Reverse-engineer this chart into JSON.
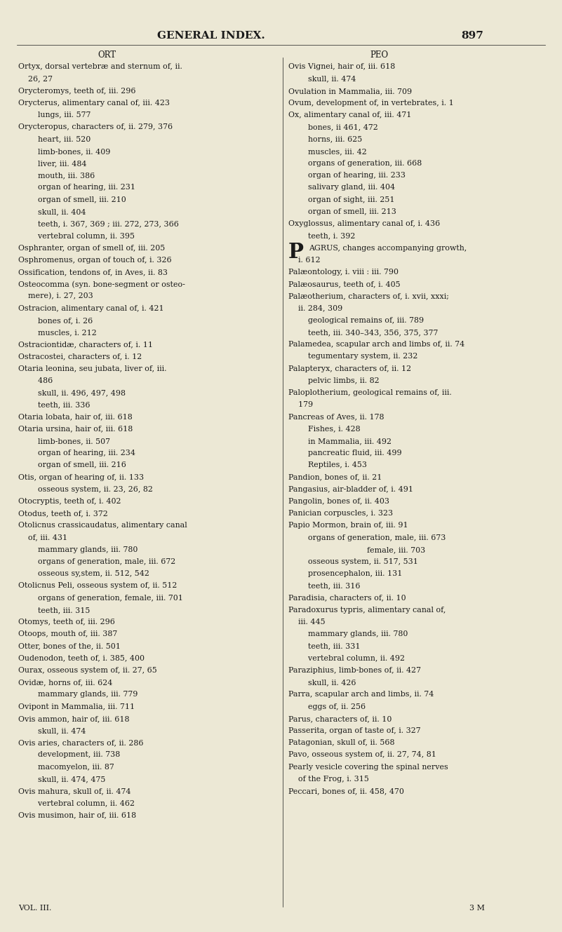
{
  "bg_color": "#ece8d5",
  "text_color": "#1a1a1a",
  "title": "GENERAL INDEX.",
  "page_num": "897",
  "left_header": "ORT",
  "right_header": "PEO",
  "left_lines": [
    [
      "Ortyx, dorsal vertebræ and sternum of, ii.",
      false
    ],
    [
      "    26, 27",
      false
    ],
    [
      "Orycteromys, teeth of, iii. 296",
      false
    ],
    [
      "Orycterus, alimentary canal of, iii. 423",
      false
    ],
    [
      "        lungs, iii. 577",
      false
    ],
    [
      "Orycteropus, characters of, ii. 279, 376",
      false
    ],
    [
      "        heart, iii. 520",
      false
    ],
    [
      "        limb-bones, ii. 409",
      false
    ],
    [
      "        liver, iii. 484",
      false
    ],
    [
      "        mouth, iii. 386",
      false
    ],
    [
      "        organ of hearing, iii. 231",
      false
    ],
    [
      "        organ of smell, iii. 210",
      false
    ],
    [
      "        skull, ii. 404",
      false
    ],
    [
      "        teeth, i. 367, 369 ; iii. 272, 273, 366",
      false
    ],
    [
      "        vertebral column, ii. 395",
      false
    ],
    [
      "Osphranter, organ of smell of, iii. 205",
      false
    ],
    [
      "Osphromenus, organ of touch of, i. 326",
      false
    ],
    [
      "Ossification, tendons of, in Aves, ii. 83",
      false
    ],
    [
      "Osteocomma (syn. bone-segment or osteo-",
      false
    ],
    [
      "    mere), i. 27, 203",
      false
    ],
    [
      "Ostracion, alimentary canal of, i. 421",
      false
    ],
    [
      "        bones of, i. 26",
      false
    ],
    [
      "        muscles, i. 212",
      false
    ],
    [
      "Ostraciontidæ, characters of, i. 11",
      false
    ],
    [
      "Ostracostei, characters of, i. 12",
      false
    ],
    [
      "Otaria leonina, seu jubata, liver of, iii.",
      false
    ],
    [
      "        486",
      false
    ],
    [
      "        skull, ii. 496, 497, 498",
      false
    ],
    [
      "        teeth, iii. 336",
      false
    ],
    [
      "Otaria lobata, hair of, iii. 618",
      false
    ],
    [
      "Otaria ursina, hair of, iii. 618",
      false
    ],
    [
      "        limb-bones, ii. 507",
      false
    ],
    [
      "        organ of hearing, iii. 234",
      false
    ],
    [
      "        organ of smell, iii. 216",
      false
    ],
    [
      "Otis, organ of hearing of, ii. 133",
      false
    ],
    [
      "        osseous system, ii. 23, 26, 82",
      false
    ],
    [
      "Otocryptis, teeth of, i. 402",
      false
    ],
    [
      "Otodus, teeth of, i. 372",
      false
    ],
    [
      "Otolicnus crassicaudatus, alimentary canal",
      false
    ],
    [
      "    of, iii. 431",
      false
    ],
    [
      "        mammary glands, iii. 780",
      false
    ],
    [
      "        organs of generation, male, iii. 672",
      false
    ],
    [
      "        osseous sy,stem, ii. 512, 542",
      false
    ],
    [
      "Otolicnus Peli, osseous system of, ii. 512",
      false
    ],
    [
      "        organs of generation, female, iii. 701",
      false
    ],
    [
      "        teeth, iii. 315",
      false
    ],
    [
      "Otomys, teeth of, iii. 296",
      false
    ],
    [
      "Otoops, mouth of, iii. 387",
      false
    ],
    [
      "Otter, bones of the, ii. 501",
      false
    ],
    [
      "Oudenodon, teeth of, i. 385, 400",
      false
    ],
    [
      "Ourax, osseous system of, ii. 27, 65",
      false
    ],
    [
      "Ovidæ, horns of, iii. 624",
      false
    ],
    [
      "        mammary glands, iii. 779",
      false
    ],
    [
      "Ovipont in Mammalia, iii. 711",
      false
    ],
    [
      "Ovis ammon, hair of, iii. 618",
      false
    ],
    [
      "        skull, ii. 474",
      false
    ],
    [
      "Ovis aries, characters of, ii. 286",
      false
    ],
    [
      "        development, iii. 738",
      false
    ],
    [
      "        macomyelon, iii. 87",
      false
    ],
    [
      "        skull, ii. 474, 475",
      false
    ],
    [
      "Ovis mahura, skull of, ii. 474",
      false
    ],
    [
      "        vertebral column, ii. 462",
      false
    ],
    [
      "Ovis musimon, hair of, iii. 618",
      false
    ]
  ],
  "right_lines": [
    [
      "Ovis Vignei, hair of, iii. 618",
      false
    ],
    [
      "        skull, ii. 474",
      false
    ],
    [
      "Ovulation in Mammalia, iii. 709",
      false
    ],
    [
      "Ovum, development of, in vertebrates, i. 1",
      false
    ],
    [
      "Ox, alimentary canal of, iii. 471",
      false
    ],
    [
      "        bones, ii 461, 472",
      false
    ],
    [
      "        horns, iii. 625",
      false
    ],
    [
      "        muscles, iii. 42",
      false
    ],
    [
      "        organs of generation, iii. 668",
      false
    ],
    [
      "        organ of hearing, iii. 233",
      false
    ],
    [
      "        salivary gland, iii. 404",
      false
    ],
    [
      "        organ of sight, iii. 251",
      false
    ],
    [
      "        organ of smell, iii. 213",
      false
    ],
    [
      "Oxyglossus, alimentary canal of, i. 436",
      false
    ],
    [
      "        teeth, i. 392",
      false
    ],
    [
      "PAGRUS, changes accompanying growth,",
      true
    ],
    [
      "    i. 612",
      false
    ],
    [
      "Palæontology, i. viii : iii. 790",
      false
    ],
    [
      "Palæosaurus, teeth of, i. 405",
      false
    ],
    [
      "Palæotherium, characters of, i. xvii, xxxi;",
      false
    ],
    [
      "    ii. 284, 309",
      false
    ],
    [
      "        geological remains of, iii. 789",
      false
    ],
    [
      "        teeth, iii. 340–343, 356, 375, 377",
      false
    ],
    [
      "Palamedea, scapular arch and limbs of, ii. 74",
      false
    ],
    [
      "        tegumentary system, ii. 232",
      false
    ],
    [
      "Palapteryx, characters of, ii. 12",
      false
    ],
    [
      "        pelvic limbs, ii. 82",
      false
    ],
    [
      "Paloplotherium, geological remains of, iii.",
      false
    ],
    [
      "    179",
      false
    ],
    [
      "Pancreas of Aves, ii. 178",
      false
    ],
    [
      "        Fishes, i. 428",
      false
    ],
    [
      "        in Mammalia, iii. 492",
      false
    ],
    [
      "        pancreatic fluid, iii. 499",
      false
    ],
    [
      "        Reptiles, i. 453",
      false
    ],
    [
      "Pandion, bones of, ii. 21",
      false
    ],
    [
      "Pangasius, air-bladder of, i. 491",
      false
    ],
    [
      "Pangolin, bones of, ii. 403",
      false
    ],
    [
      "Panician corpuscles, i. 323",
      false
    ],
    [
      "Papio Mormon, brain of, iii. 91",
      false
    ],
    [
      "        organs of generation, male, iii. 673",
      false
    ],
    [
      "                                female, iii. 703",
      false
    ],
    [
      "        osseous system, ii. 517, 531",
      false
    ],
    [
      "        prosencephalon, iii. 131",
      false
    ],
    [
      "        teeth, iii. 316",
      false
    ],
    [
      "Paradisia, characters of, ii. 10",
      false
    ],
    [
      "Paradoxurus typris, alimentary canal of,",
      false
    ],
    [
      "    iii. 445",
      false
    ],
    [
      "        mammary glands, iii. 780",
      false
    ],
    [
      "        teeth, iii. 331",
      false
    ],
    [
      "        vertebral column, ii. 492",
      false
    ],
    [
      "Paraziphius, limb-bones of, ii. 427",
      false
    ],
    [
      "        skull, ii. 426",
      false
    ],
    [
      "Parra, scapular arch and limbs, ii. 74",
      false
    ],
    [
      "        eggs of, ii. 256",
      false
    ],
    [
      "Parus, characters of, ii. 10",
      false
    ],
    [
      "Passerita, organ of taste of, i. 327",
      false
    ],
    [
      "Patagonian, skull of, ii. 568",
      false
    ],
    [
      "Pavo, osseous system of, ii. 27, 74, 81",
      false
    ],
    [
      "Pearly vesicle covering the spinal nerves",
      false
    ],
    [
      "    of the Frog, i. 315",
      false
    ],
    [
      "Peccari, bones of, ii. 458, 470",
      false
    ]
  ],
  "footer_left": "VOL. III.",
  "footer_right": "3 M"
}
